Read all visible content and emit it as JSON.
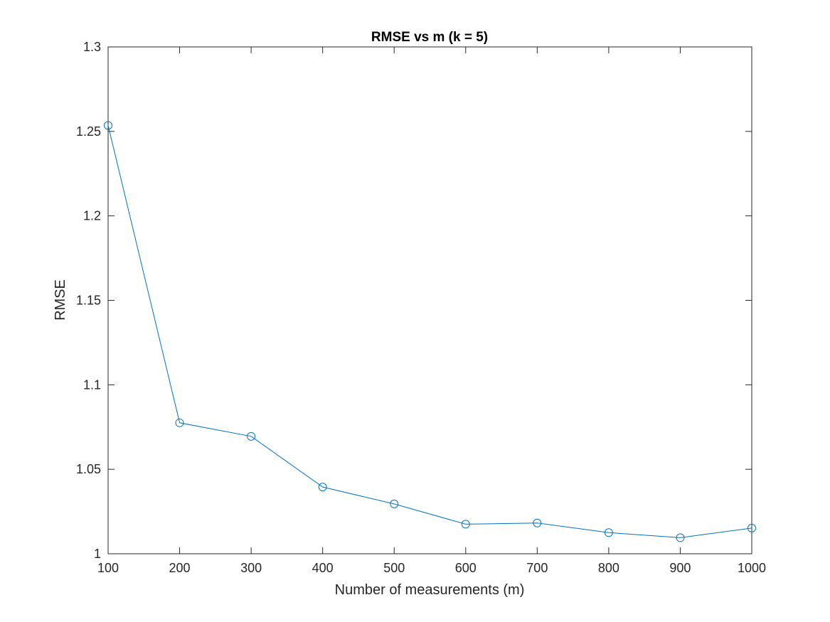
{
  "chart_data": {
    "type": "line",
    "title": "RMSE vs m (k = 5)",
    "xlabel": "Number of measurements (m)",
    "ylabel": "RMSE",
    "x": [
      100,
      200,
      300,
      400,
      500,
      600,
      700,
      800,
      900,
      1000
    ],
    "series": [
      {
        "values": [
          1.2535,
          1.0775,
          1.0695,
          1.0395,
          1.0295,
          1.0175,
          1.0182,
          1.0125,
          1.0095,
          1.0152
        ],
        "color": "#0072BD",
        "marker": "circle"
      }
    ],
    "xlim": [
      100,
      1000
    ],
    "ylim": [
      1,
      1.3
    ],
    "xticks": [
      100,
      200,
      300,
      400,
      500,
      600,
      700,
      800,
      900,
      1000
    ],
    "xtick_labels": [
      "100",
      "200",
      "300",
      "400",
      "500",
      "600",
      "700",
      "800",
      "900",
      "1000"
    ],
    "yticks": [
      1,
      1.05,
      1.1,
      1.15,
      1.2,
      1.25,
      1.3
    ],
    "ytick_labels": [
      "1",
      "1.05",
      "1.1",
      "1.15",
      "1.2",
      "1.25",
      "1.3"
    ],
    "grid": false,
    "box": true
  }
}
